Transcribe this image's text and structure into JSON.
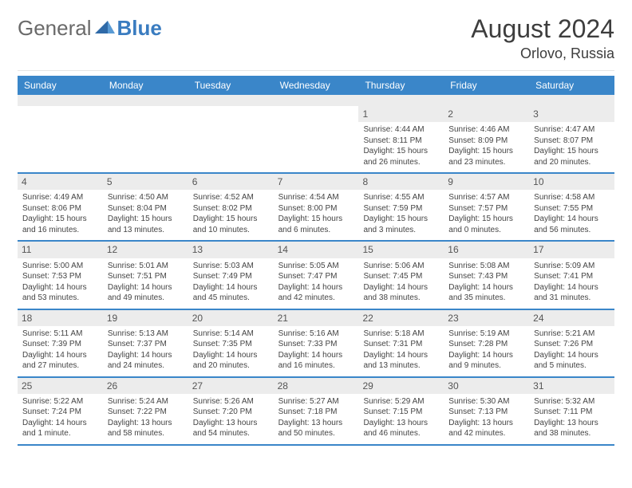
{
  "logo": {
    "text_general": "General",
    "text_blue": "Blue"
  },
  "header": {
    "month_title": "August 2024",
    "location": "Orlovo, Russia"
  },
  "colors": {
    "header_bar": "#3a86c9",
    "header_text": "#ffffff",
    "daynum_bg": "#ececec",
    "subhead_bg": "#ececec",
    "body_text": "#444444",
    "title_text": "#3d3d3d",
    "logo_gray": "#6a6a6a",
    "logo_blue": "#3a7cc0",
    "week_divider": "#3a86c9"
  },
  "days_of_week": [
    "Sunday",
    "Monday",
    "Tuesday",
    "Wednesday",
    "Thursday",
    "Friday",
    "Saturday"
  ],
  "weeks": [
    [
      null,
      null,
      null,
      null,
      {
        "n": "1",
        "sr": "Sunrise: 4:44 AM",
        "ss": "Sunset: 8:11 PM",
        "d1": "Daylight: 15 hours",
        "d2": "and 26 minutes."
      },
      {
        "n": "2",
        "sr": "Sunrise: 4:46 AM",
        "ss": "Sunset: 8:09 PM",
        "d1": "Daylight: 15 hours",
        "d2": "and 23 minutes."
      },
      {
        "n": "3",
        "sr": "Sunrise: 4:47 AM",
        "ss": "Sunset: 8:07 PM",
        "d1": "Daylight: 15 hours",
        "d2": "and 20 minutes."
      }
    ],
    [
      {
        "n": "4",
        "sr": "Sunrise: 4:49 AM",
        "ss": "Sunset: 8:06 PM",
        "d1": "Daylight: 15 hours",
        "d2": "and 16 minutes."
      },
      {
        "n": "5",
        "sr": "Sunrise: 4:50 AM",
        "ss": "Sunset: 8:04 PM",
        "d1": "Daylight: 15 hours",
        "d2": "and 13 minutes."
      },
      {
        "n": "6",
        "sr": "Sunrise: 4:52 AM",
        "ss": "Sunset: 8:02 PM",
        "d1": "Daylight: 15 hours",
        "d2": "and 10 minutes."
      },
      {
        "n": "7",
        "sr": "Sunrise: 4:54 AM",
        "ss": "Sunset: 8:00 PM",
        "d1": "Daylight: 15 hours",
        "d2": "and 6 minutes."
      },
      {
        "n": "8",
        "sr": "Sunrise: 4:55 AM",
        "ss": "Sunset: 7:59 PM",
        "d1": "Daylight: 15 hours",
        "d2": "and 3 minutes."
      },
      {
        "n": "9",
        "sr": "Sunrise: 4:57 AM",
        "ss": "Sunset: 7:57 PM",
        "d1": "Daylight: 15 hours",
        "d2": "and 0 minutes."
      },
      {
        "n": "10",
        "sr": "Sunrise: 4:58 AM",
        "ss": "Sunset: 7:55 PM",
        "d1": "Daylight: 14 hours",
        "d2": "and 56 minutes."
      }
    ],
    [
      {
        "n": "11",
        "sr": "Sunrise: 5:00 AM",
        "ss": "Sunset: 7:53 PM",
        "d1": "Daylight: 14 hours",
        "d2": "and 53 minutes."
      },
      {
        "n": "12",
        "sr": "Sunrise: 5:01 AM",
        "ss": "Sunset: 7:51 PM",
        "d1": "Daylight: 14 hours",
        "d2": "and 49 minutes."
      },
      {
        "n": "13",
        "sr": "Sunrise: 5:03 AM",
        "ss": "Sunset: 7:49 PM",
        "d1": "Daylight: 14 hours",
        "d2": "and 45 minutes."
      },
      {
        "n": "14",
        "sr": "Sunrise: 5:05 AM",
        "ss": "Sunset: 7:47 PM",
        "d1": "Daylight: 14 hours",
        "d2": "and 42 minutes."
      },
      {
        "n": "15",
        "sr": "Sunrise: 5:06 AM",
        "ss": "Sunset: 7:45 PM",
        "d1": "Daylight: 14 hours",
        "d2": "and 38 minutes."
      },
      {
        "n": "16",
        "sr": "Sunrise: 5:08 AM",
        "ss": "Sunset: 7:43 PM",
        "d1": "Daylight: 14 hours",
        "d2": "and 35 minutes."
      },
      {
        "n": "17",
        "sr": "Sunrise: 5:09 AM",
        "ss": "Sunset: 7:41 PM",
        "d1": "Daylight: 14 hours",
        "d2": "and 31 minutes."
      }
    ],
    [
      {
        "n": "18",
        "sr": "Sunrise: 5:11 AM",
        "ss": "Sunset: 7:39 PM",
        "d1": "Daylight: 14 hours",
        "d2": "and 27 minutes."
      },
      {
        "n": "19",
        "sr": "Sunrise: 5:13 AM",
        "ss": "Sunset: 7:37 PM",
        "d1": "Daylight: 14 hours",
        "d2": "and 24 minutes."
      },
      {
        "n": "20",
        "sr": "Sunrise: 5:14 AM",
        "ss": "Sunset: 7:35 PM",
        "d1": "Daylight: 14 hours",
        "d2": "and 20 minutes."
      },
      {
        "n": "21",
        "sr": "Sunrise: 5:16 AM",
        "ss": "Sunset: 7:33 PM",
        "d1": "Daylight: 14 hours",
        "d2": "and 16 minutes."
      },
      {
        "n": "22",
        "sr": "Sunrise: 5:18 AM",
        "ss": "Sunset: 7:31 PM",
        "d1": "Daylight: 14 hours",
        "d2": "and 13 minutes."
      },
      {
        "n": "23",
        "sr": "Sunrise: 5:19 AM",
        "ss": "Sunset: 7:28 PM",
        "d1": "Daylight: 14 hours",
        "d2": "and 9 minutes."
      },
      {
        "n": "24",
        "sr": "Sunrise: 5:21 AM",
        "ss": "Sunset: 7:26 PM",
        "d1": "Daylight: 14 hours",
        "d2": "and 5 minutes."
      }
    ],
    [
      {
        "n": "25",
        "sr": "Sunrise: 5:22 AM",
        "ss": "Sunset: 7:24 PM",
        "d1": "Daylight: 14 hours",
        "d2": "and 1 minute."
      },
      {
        "n": "26",
        "sr": "Sunrise: 5:24 AM",
        "ss": "Sunset: 7:22 PM",
        "d1": "Daylight: 13 hours",
        "d2": "and 58 minutes."
      },
      {
        "n": "27",
        "sr": "Sunrise: 5:26 AM",
        "ss": "Sunset: 7:20 PM",
        "d1": "Daylight: 13 hours",
        "d2": "and 54 minutes."
      },
      {
        "n": "28",
        "sr": "Sunrise: 5:27 AM",
        "ss": "Sunset: 7:18 PM",
        "d1": "Daylight: 13 hours",
        "d2": "and 50 minutes."
      },
      {
        "n": "29",
        "sr": "Sunrise: 5:29 AM",
        "ss": "Sunset: 7:15 PM",
        "d1": "Daylight: 13 hours",
        "d2": "and 46 minutes."
      },
      {
        "n": "30",
        "sr": "Sunrise: 5:30 AM",
        "ss": "Sunset: 7:13 PM",
        "d1": "Daylight: 13 hours",
        "d2": "and 42 minutes."
      },
      {
        "n": "31",
        "sr": "Sunrise: 5:32 AM",
        "ss": "Sunset: 7:11 PM",
        "d1": "Daylight: 13 hours",
        "d2": "and 38 minutes."
      }
    ]
  ]
}
